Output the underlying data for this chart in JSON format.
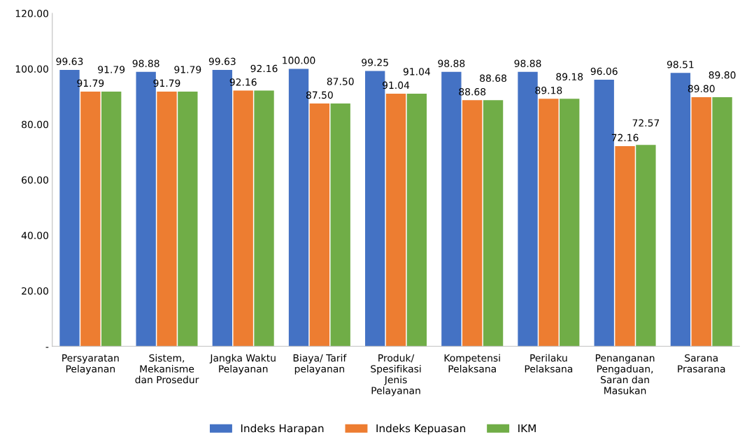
{
  "chart_data": {
    "type": "bar",
    "categories": [
      "Persyaratan\nPelayanan",
      "Sistem,\nMekanisme\ndan Prosedur",
      "Jangka Waktu\nPelayanan",
      "Biaya/ Tarif\npelayanan",
      "Produk/\nSpesifikasi\nJenis\nPelayanan",
      "Kompetensi\nPelaksana",
      "Perilaku\nPelaksana",
      "Penanganan\nPengaduan,\nSaran dan\nMasukan",
      "Sarana\nPrasarana"
    ],
    "series": [
      {
        "name": "Indeks Harapan",
        "color": "#4472c4",
        "values": [
          99.63,
          98.88,
          99.63,
          100.0,
          99.25,
          98.88,
          98.88,
          96.06,
          98.51
        ],
        "value_labels": [
          "99.63",
          "98.88",
          "99.63",
          "100.00",
          "99.25",
          "98.88",
          "98.88",
          "96.06",
          "98.51"
        ]
      },
      {
        "name": "Indeks Kepuasan",
        "color": "#ed7d31",
        "values": [
          91.79,
          91.79,
          92.16,
          87.5,
          91.04,
          88.68,
          89.18,
          72.16,
          89.8
        ],
        "value_labels": [
          "91.79",
          "91.79",
          "92.16",
          "87.50",
          "91.04",
          "88.68",
          "89.18",
          "72.16",
          "89.80"
        ]
      },
      {
        "name": "IKM",
        "color": "#70ad47",
        "values": [
          91.79,
          91.79,
          92.16,
          87.5,
          91.04,
          88.68,
          89.18,
          72.57,
          89.8
        ],
        "value_labels": [
          "91.79",
          "91.79",
          "92.16",
          "87.50",
          "91.04",
          "88.68",
          "89.18",
          "72.57",
          "89.80"
        ]
      }
    ],
    "ylim": [
      0,
      120
    ],
    "yticks": [
      {
        "value": 0,
        "label": "-"
      },
      {
        "value": 20,
        "label": "20.00"
      },
      {
        "value": 40,
        "label": "40.00"
      },
      {
        "value": 60,
        "label": "60.00"
      },
      {
        "value": 80,
        "label": "80.00"
      },
      {
        "value": 100,
        "label": "100.00"
      },
      {
        "value": 120,
        "label": "120.00"
      }
    ],
    "grid": false,
    "legend": "bottom"
  }
}
